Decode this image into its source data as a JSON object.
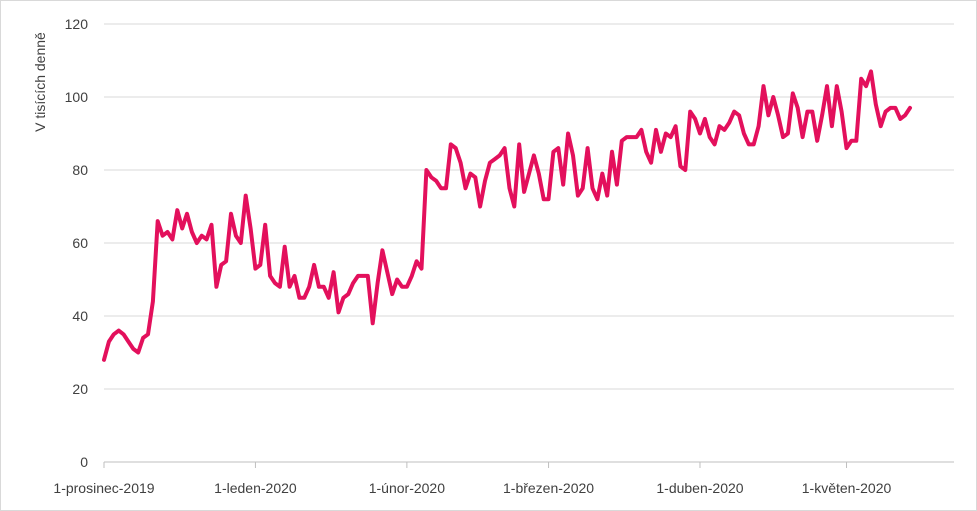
{
  "chart_data": {
    "type": "line",
    "title": "",
    "xlabel": "",
    "ylabel": "V tisících denně",
    "ylim": [
      0,
      120
    ],
    "yticks": [
      0,
      20,
      40,
      60,
      80,
      100,
      120
    ],
    "xlim": [
      "2019-12-01",
      "2020-05-23"
    ],
    "x_tick_dates": [
      "2019-12-01",
      "2020-01-01",
      "2020-02-01",
      "2020-03-01",
      "2020-04-01",
      "2020-05-01"
    ],
    "x_tick_labels": [
      "1-prosinec-2019",
      "1-leden-2020",
      "1-únor-2020",
      "1-březen-2020",
      "1-duben-2020",
      "1-květen-2020"
    ],
    "grid": true,
    "line_color": "#e3105c",
    "series": [
      {
        "start_date": "2019-12-01",
        "values": [
          28,
          33,
          35,
          36,
          35,
          33,
          31,
          30,
          34,
          35,
          44,
          66,
          62,
          63,
          61,
          69,
          64,
          68,
          63,
          60,
          62,
          61,
          65,
          48,
          54,
          55,
          68,
          62,
          60,
          73,
          64,
          53,
          54,
          65,
          51,
          49,
          48,
          59,
          48,
          51,
          45,
          45,
          48,
          54,
          48,
          48,
          45,
          52,
          41,
          45,
          46,
          49,
          51,
          51,
          51,
          38,
          49,
          58,
          52,
          46,
          50,
          48,
          48,
          51,
          55,
          53,
          80,
          78,
          77,
          75,
          75,
          87,
          86,
          82,
          75,
          79,
          78,
          70,
          77,
          82,
          83,
          84,
          86,
          75,
          70,
          87,
          74,
          79,
          84,
          79,
          72,
          72,
          85,
          86,
          76,
          90,
          84,
          73,
          75,
          86,
          75,
          72,
          79,
          73,
          85,
          76,
          88,
          89,
          89,
          89,
          91,
          85,
          82,
          91,
          85,
          90,
          89,
          92,
          81,
          80,
          96,
          94,
          90,
          94,
          89,
          87,
          92,
          91,
          93,
          96,
          95,
          90,
          87,
          87,
          92,
          103,
          95,
          100,
          95,
          89,
          90,
          101,
          97,
          89,
          96,
          96,
          88,
          95,
          103,
          92,
          103,
          96,
          86,
          88,
          88,
          105,
          103,
          107,
          98,
          92,
          96,
          97,
          97,
          94,
          95,
          97
        ]
      }
    ]
  }
}
